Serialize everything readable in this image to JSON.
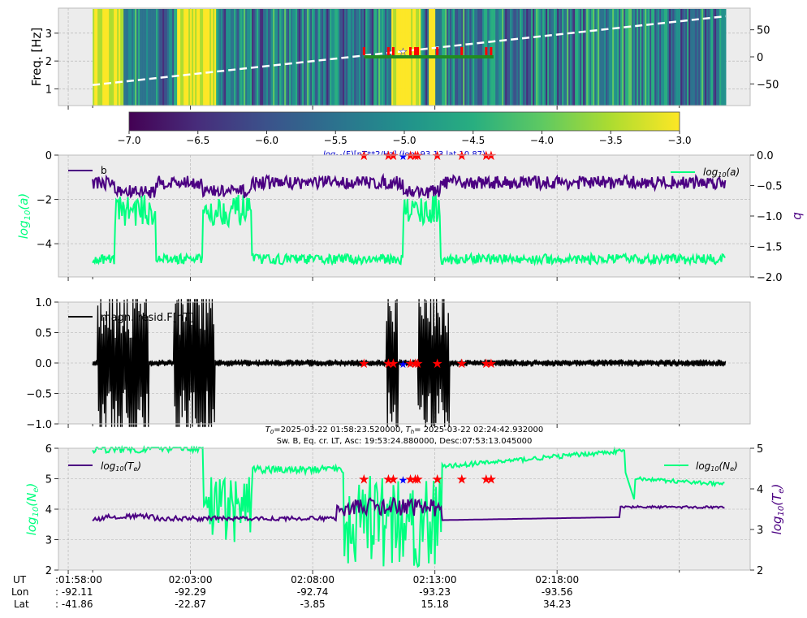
{
  "colors": {
    "panel_bg": "#ececec",
    "grid": "#b0b0b0",
    "teal_series": "#00ff7f",
    "purple_series": "#4b0082",
    "black_series": "#000000",
    "marker_red": "#ff0000",
    "marker_blue": "#0000ff",
    "dashed_line": "#ffffff",
    "green_bar": "#228b22",
    "spectrogram_low": "#440154",
    "spectrogram_high": "#fde725"
  },
  "chart_data": [
    {
      "type": "heatmap",
      "id": "spectrogram",
      "ylabel": "Freq. [Hz]",
      "yticks": [
        "1",
        "2",
        "3"
      ],
      "ylim": [
        0.4,
        3.9
      ],
      "right_yticks": [
        "50",
        "0",
        "−50"
      ],
      "right_ylim": [
        -90,
        90
      ],
      "yellow_bands_minutes": [
        [
          0.5,
          2.2
        ],
        [
          4.4,
          6.0
        ],
        [
          13.2,
          14.4
        ],
        [
          14.7,
          15.0
        ]
      ],
      "dashed_line_right_axis": {
        "start": -52,
        "end": 75
      },
      "colorbar": {
        "ticks": [
          "−7.0",
          "−6.5",
          "−6.0",
          "−5.5",
          "−5.0",
          "−4.5",
          "−4.0",
          "−3.5",
          "−3.0"
        ],
        "range": [
          -7.0,
          -3.0
        ],
        "label_math": "log",
        "label_sub": "10",
        "label_rest": "(F)[nT**2/Hz] (lon -93.13 lat 10.87)"
      }
    },
    {
      "type": "line",
      "id": "fit-params",
      "ylabel_math": "log",
      "ylabel_sub": "10",
      "ylabel_rest": "(a)",
      "yticks": [
        "0",
        "−2",
        "−4"
      ],
      "ylim": [
        -5.5,
        0
      ],
      "right_ylabel": "b",
      "right_yticks": [
        "0.0",
        "−0.5",
        "−1.0",
        "−1.5",
        "−2.0"
      ],
      "right_ylim": [
        -2.0,
        0.0
      ],
      "legend": [
        {
          "label": "b",
          "position": "top-left"
        },
        {
          "label_math": "log",
          "label_sub": "10",
          "label_rest": "(a)",
          "position": "top-right"
        }
      ],
      "series": [
        {
          "name": "b",
          "axis": "right",
          "typical": -0.45,
          "range": [
            -0.7,
            -0.2
          ]
        },
        {
          "name": "log10(a)",
          "axis": "left",
          "baseline": -4.7,
          "elevated": -2.5,
          "elevated_minutes": [
            [
              1.9,
              3.6
            ],
            [
              5.5,
              7.5
            ],
            [
              13.7,
              15.2
            ]
          ]
        }
      ]
    },
    {
      "type": "line",
      "id": "mag-residual",
      "yticks": [
        "1.0",
        "0.5",
        "0.0",
        "−0.5",
        "−1.0"
      ],
      "ylim": [
        -1.0,
        1.0
      ],
      "legend": [
        {
          "label": "magn. resid.F[nT]",
          "position": "top-left"
        }
      ],
      "series": [
        {
          "name": "magn. resid.F[nT]",
          "baseline_amplitude": 0.04,
          "burst_minutes": [
            [
              1.2,
              3.3
            ],
            [
              4.3,
              6.0
            ],
            [
              13.0,
              13.5
            ],
            [
              14.3,
              15.6
            ]
          ],
          "burst_amplitude": 1.0
        }
      ]
    },
    {
      "type": "line",
      "id": "plasma",
      "title_line1_math": "T",
      "title_line1_sub0": "0",
      "title_line1_a": "=2025-03-22 01:58:23.520000, ",
      "title_line1_sub1": "h",
      "title_line1_b": "= 2025-03-22 02:24:42.932000",
      "title_line2": "Sw. B, Eq. cr. LT, Asc: 19:53:24.880000, Desc:07:53:13.045000",
      "ylabel_math": "log",
      "ylabel_sub": "10",
      "ylabel_rest": "(N",
      "ylabel_sub2": "e",
      "yticks": [
        "6",
        "5",
        "4",
        "3",
        "2"
      ],
      "ylim": [
        2,
        6
      ],
      "right_ylabel_math": "log",
      "right_ylabel_sub": "10",
      "right_ylabel_rest": "(T",
      "right_ylabel_sub2": "e",
      "right_yticks": [
        "5",
        "4",
        "3",
        "2"
      ],
      "right_ylim": [
        2,
        5
      ],
      "legend": [
        {
          "label_math": "log",
          "label_sub": "10",
          "label_rest": "(T",
          "label_sub2": "e",
          "position": "top-left"
        },
        {
          "label_math": "log",
          "label_sub": "10",
          "label_rest": "(N",
          "label_sub2": "e",
          "position": "top-right"
        }
      ],
      "series": [
        {
          "name": "log10(Te)",
          "axis": "right",
          "baseline": 3.27,
          "later": 3.55
        },
        {
          "name": "log10(Ne)",
          "axis": "left",
          "start": 6.0,
          "plateau": 5.3,
          "late": 4.8
        }
      ]
    }
  ],
  "marker_minutes": {
    "red": [
      12.1,
      13.1,
      13.3,
      14.0,
      14.2,
      14.3,
      15.1,
      16.1,
      17.1,
      17.3
    ],
    "blue": [
      13.7
    ]
  },
  "x_axis": {
    "start_minute": -0.4,
    "end_minute": 27.9,
    "tick_minutes": [
      0,
      5,
      10,
      15,
      20
    ],
    "minor_tick_minutes": [
      1,
      25
    ],
    "rows": [
      {
        "name": "UT",
        "values": [
          ":01:58:00",
          "02:03:00",
          "02:08:00",
          "02:13:00",
          "02:18:00"
        ]
      },
      {
        "name": "Lon",
        "values": [
          ":  -92.11",
          "-92.29",
          "-92.74",
          "-93.23",
          "-93.56"
        ]
      },
      {
        "name": "Lat",
        "values": [
          ":  -41.86",
          "-22.87",
          "-3.85",
          "15.18",
          "34.23"
        ]
      }
    ]
  }
}
